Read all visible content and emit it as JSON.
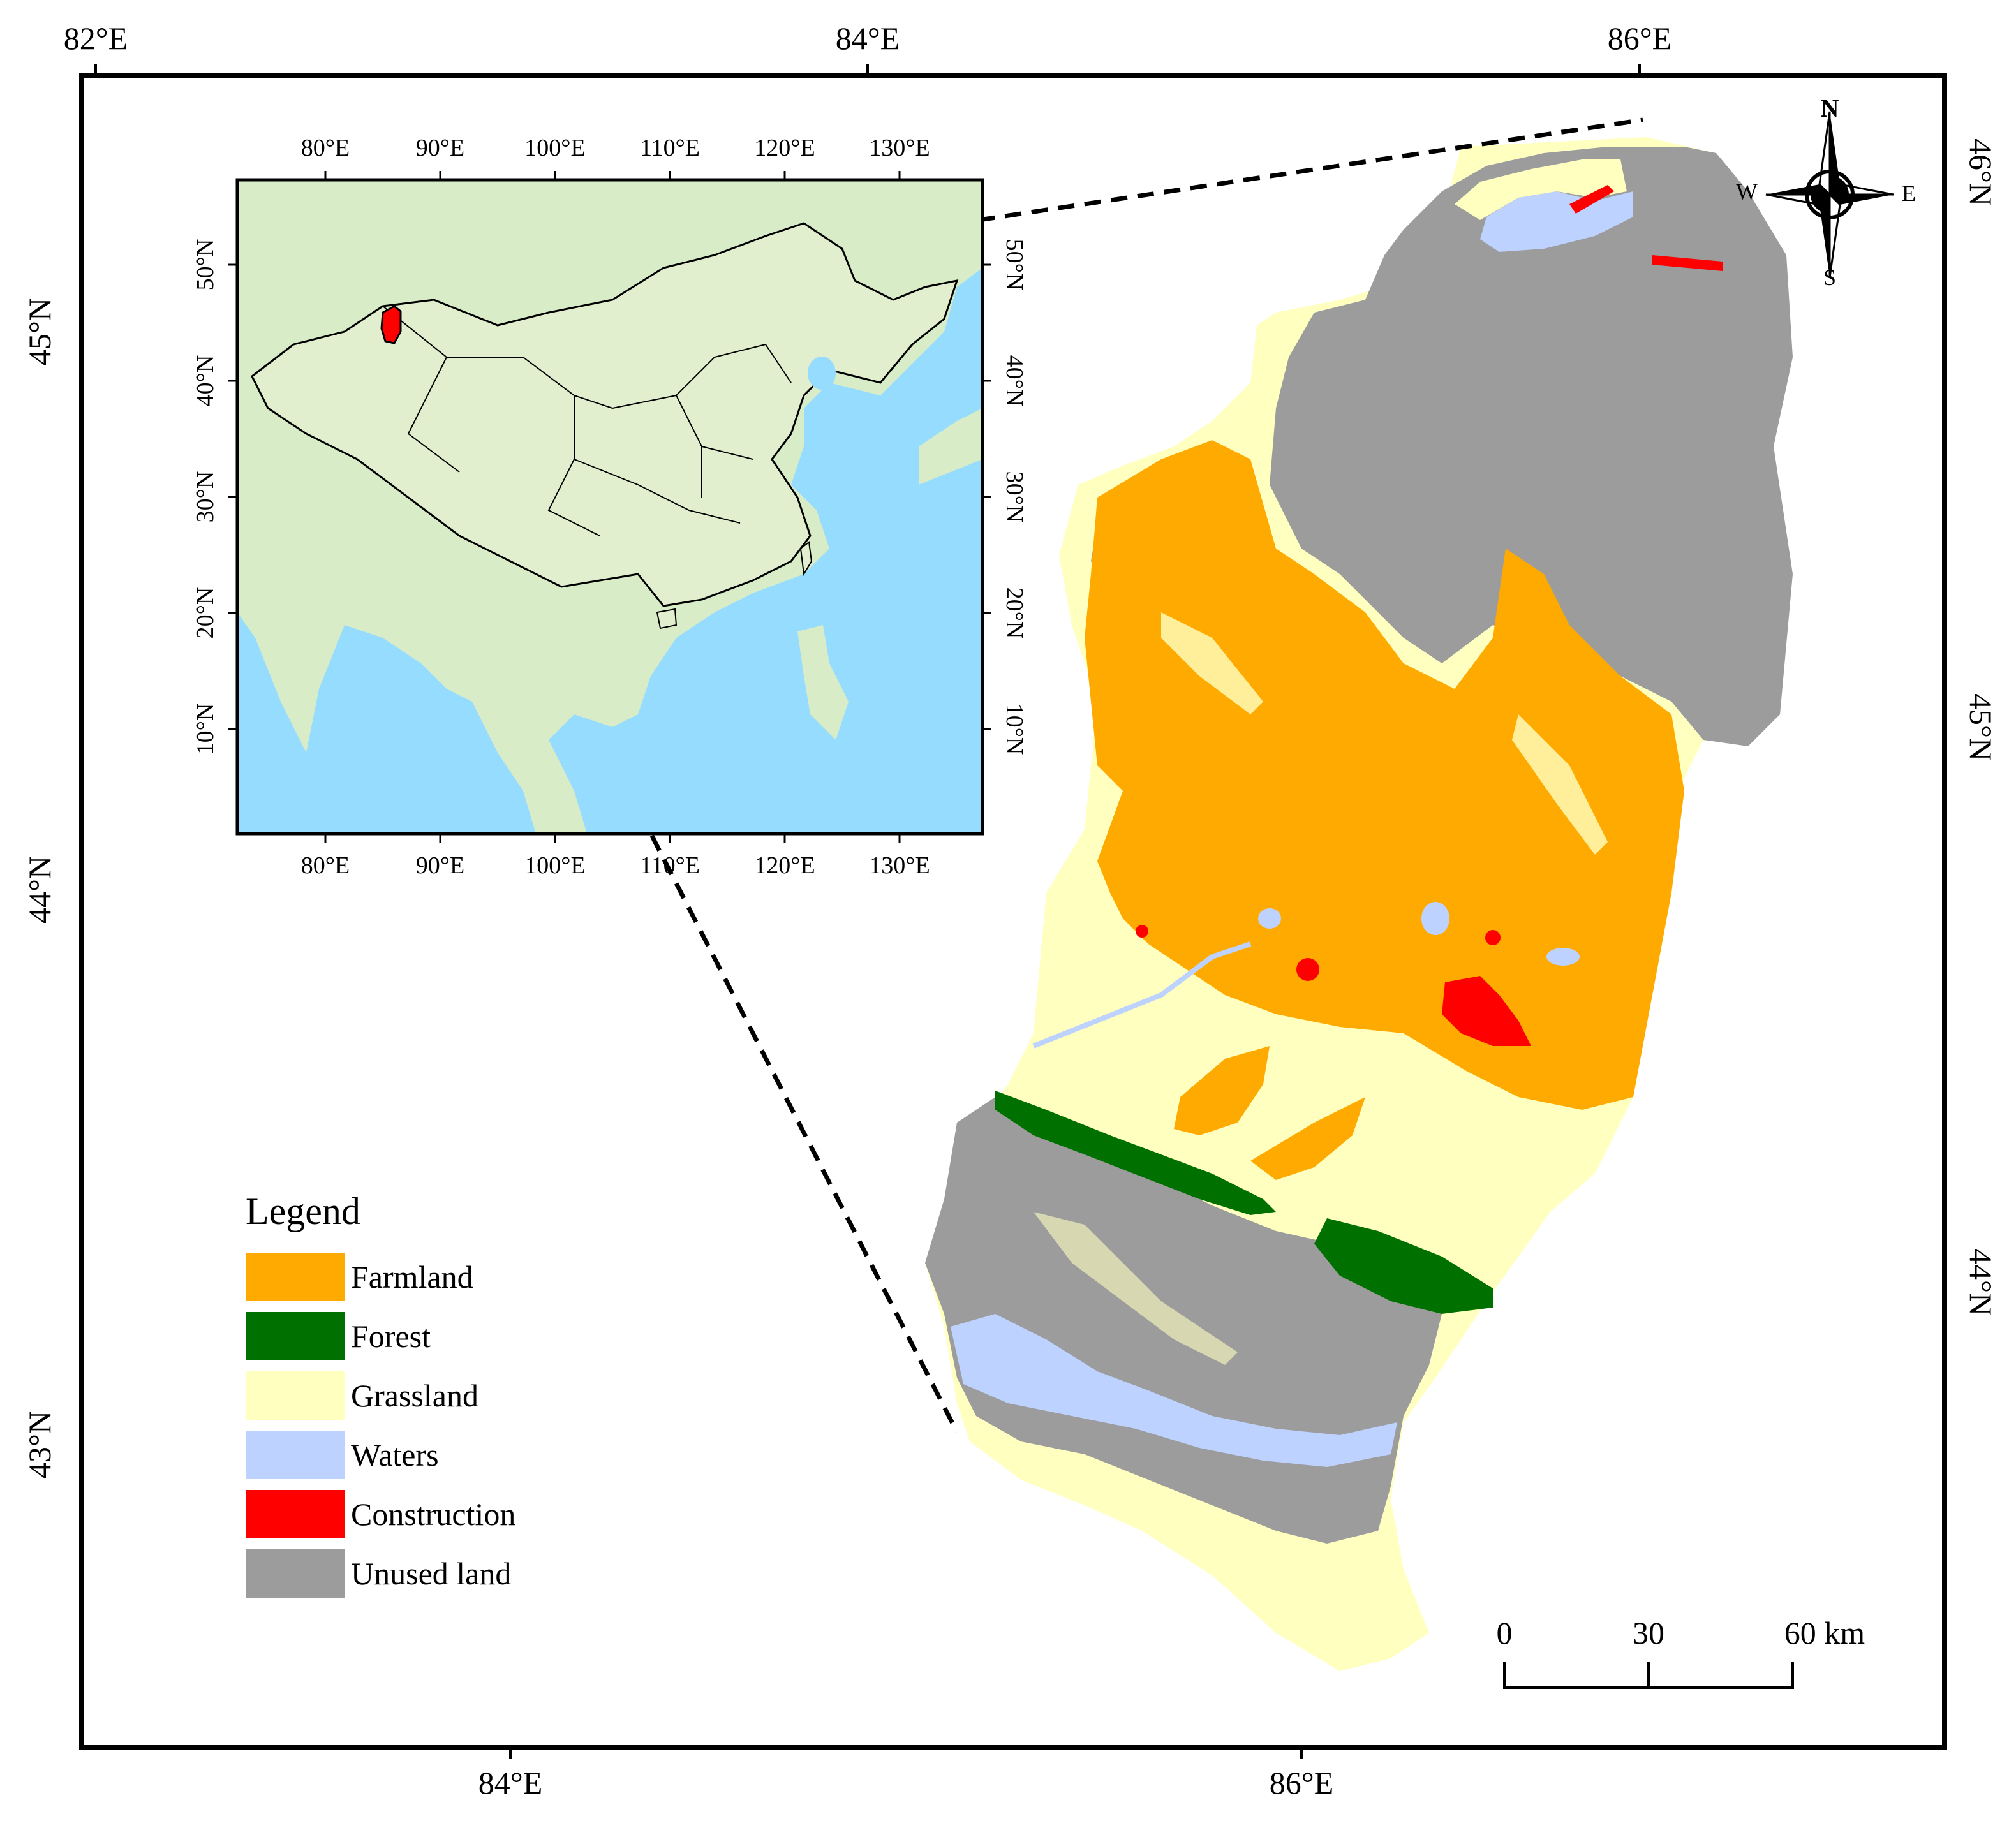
{
  "map": {
    "lon_ticks_top": [
      "82°E",
      "84°E",
      "86°E"
    ],
    "lon_ticks_bottom": [
      "84°E",
      "86°E"
    ],
    "lat_ticks_left": [
      "45°N",
      "44°N",
      "43°N"
    ],
    "lat_ticks_right": [
      "46°N",
      "45°N",
      "44°N"
    ]
  },
  "inset": {
    "lon_ticks": [
      "80°E",
      "90°E",
      "100°E",
      "110°E",
      "120°E",
      "130°E"
    ],
    "lat_ticks": [
      "50°N",
      "40°N",
      "30°N",
      "20°N",
      "10°N"
    ]
  },
  "compass": {
    "n": "N",
    "s": "S",
    "e": "E",
    "w": "W"
  },
  "legend": {
    "title": "Legend",
    "items": [
      {
        "label": "Farmland",
        "color": "#ffaa00"
      },
      {
        "label": "Forest",
        "color": "#007000"
      },
      {
        "label": "Grassland",
        "color": "#ffffc0"
      },
      {
        "label": "Waters",
        "color": "#bed2ff"
      },
      {
        "label": "Construction",
        "color": "#ff0000"
      },
      {
        "label": "Unused land",
        "color": "#9c9c9c"
      }
    ]
  },
  "scale_bar": {
    "ticks": [
      "0",
      "30",
      "60 km"
    ]
  },
  "colors": {
    "farmland": "#ffaa00",
    "forest": "#007000",
    "grassland": "#ffffc0",
    "waters": "#bed2ff",
    "construction": "#ff0000",
    "unused": "#9c9c9c",
    "sea": "#96dcff",
    "land_inset": "#d8ecc8"
  }
}
